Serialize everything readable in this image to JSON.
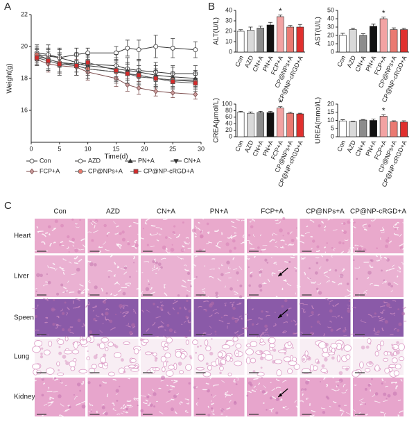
{
  "panel_labels": [
    "A",
    "B",
    "C"
  ],
  "chart_data": [
    {
      "type": "line",
      "xlabel": "Time(d)",
      "ylabel": "Weight(g)",
      "x": [
        1,
        3,
        5,
        8,
        10,
        15,
        17,
        19,
        22,
        25,
        29
      ],
      "xlim": [
        0,
        30
      ],
      "xticks": [
        0,
        5,
        10,
        15,
        20,
        25,
        30
      ],
      "ylim": [
        14,
        22
      ],
      "yticks": [
        16,
        18,
        20,
        22
      ],
      "series": [
        {
          "name": "Con",
          "color": "#333333",
          "marker": "circle",
          "marker_fill": "#ffffff",
          "values": [
            19.5,
            19.4,
            19.3,
            19.5,
            19.6,
            19.6,
            19.9,
            19.8,
            20.0,
            19.9,
            19.8
          ],
          "errors": [
            0.4,
            0.5,
            0.5,
            0.4,
            0.3,
            0.4,
            0.5,
            0.6,
            0.7,
            0.6,
            0.5
          ]
        },
        {
          "name": "AZD",
          "color": "#333333",
          "marker": "circle",
          "marker_fill": "#ffffff",
          "values": [
            19.6,
            19.5,
            19.3,
            19.0,
            18.9,
            18.8,
            18.6,
            18.5,
            18.4,
            18.3,
            18.3
          ],
          "errors": [
            0.5,
            0.6,
            0.6,
            0.6,
            0.6,
            0.7,
            0.7,
            0.7,
            0.6,
            0.5,
            0.5
          ]
        },
        {
          "name": "PN+A",
          "color": "#333333",
          "marker": "triangle",
          "marker_fill": "#333333",
          "values": [
            19.4,
            19.2,
            19.0,
            18.9,
            18.8,
            18.6,
            18.5,
            18.4,
            18.2,
            18.1,
            18.0
          ],
          "errors": [
            0.5,
            0.6,
            0.6,
            0.7,
            0.6,
            0.7,
            0.8,
            0.7,
            0.6,
            0.6,
            0.5
          ]
        },
        {
          "name": "CN+A",
          "color": "#333333",
          "marker": "triangle-down",
          "marker_fill": "#333333",
          "values": [
            19.3,
            19.1,
            18.9,
            18.8,
            18.6,
            18.4,
            18.3,
            18.2,
            18.0,
            17.9,
            17.9
          ],
          "errors": [
            0.5,
            0.6,
            0.7,
            0.6,
            0.6,
            0.7,
            0.7,
            0.6,
            0.6,
            0.5,
            0.5
          ]
        },
        {
          "name": "FCP+A",
          "color": "#7a4a4a",
          "marker": "diamond",
          "marker_fill": "#c99a9a",
          "values": [
            19.2,
            18.9,
            18.8,
            18.7,
            18.4,
            18.0,
            17.6,
            17.4,
            17.2,
            17.1,
            17.0
          ],
          "errors": [
            0.4,
            0.5,
            0.5,
            0.5,
            0.5,
            0.5,
            0.4,
            0.4,
            0.3,
            0.3,
            0.3
          ]
        },
        {
          "name": "CP@NPs+A",
          "color": "#555555",
          "marker": "circle",
          "marker_fill": "#e8796b",
          "values": [
            19.5,
            19.2,
            19.0,
            18.8,
            18.6,
            18.4,
            18.3,
            18.1,
            18.0,
            17.9,
            17.8
          ],
          "errors": [
            0.5,
            0.6,
            0.6,
            0.6,
            0.6,
            0.6,
            0.6,
            0.5,
            0.5,
            0.5,
            0.5
          ]
        },
        {
          "name": "CP@NP-cRGD+A",
          "color": "#555555",
          "marker": "square",
          "marker_fill": "#d42a2a",
          "values": [
            19.3,
            19.1,
            18.9,
            18.8,
            19.0,
            18.5,
            18.3,
            18.2,
            18.0,
            17.8,
            17.7
          ],
          "errors": [
            0.5,
            0.6,
            0.6,
            0.6,
            0.5,
            0.6,
            0.6,
            0.6,
            0.5,
            0.5,
            0.5
          ]
        }
      ]
    },
    {
      "type": "bar",
      "ylabel": "ALT(U/L)",
      "categories": [
        "Con",
        "AZD",
        "CN+A",
        "PN+A",
        "FCP+A",
        "CP@NPs+A",
        "CP@NP-cRGD+A"
      ],
      "colors": [
        "#ffffff",
        "#d9d9d9",
        "#8c8c8c",
        "#111111",
        "#f2a3a3",
        "#ea7a72",
        "#e0302e"
      ],
      "values": [
        20,
        21,
        23,
        26,
        34,
        24,
        24
      ],
      "errors": [
        1.5,
        3,
        2,
        2.5,
        1.5,
        1.5,
        2.5
      ],
      "ylim": [
        0,
        40
      ],
      "yticks": [
        0,
        10,
        20,
        30,
        40
      ],
      "annotations": [
        {
          "category": "FCP+A",
          "text": "*"
        }
      ]
    },
    {
      "type": "bar",
      "ylabel": "AST(U/L)",
      "categories": [
        "Con",
        "AZD",
        "CN+A",
        "PN+A",
        "FCP+A",
        "CP@NPs+A",
        "CP@NP-cRGD+A"
      ],
      "colors": [
        "#ffffff",
        "#d9d9d9",
        "#8c8c8c",
        "#111111",
        "#f2a3a3",
        "#ea7a72",
        "#e0302e"
      ],
      "values": [
        20,
        27,
        20,
        31,
        40,
        27,
        27
      ],
      "errors": [
        2.5,
        1.5,
        2,
        2.5,
        2,
        2,
        1.5
      ],
      "ylim": [
        0,
        50
      ],
      "yticks": [
        0,
        10,
        20,
        30,
        40,
        50
      ],
      "annotations": [
        {
          "category": "FCP+A",
          "text": "*"
        }
      ]
    },
    {
      "type": "bar",
      "ylabel": "CREA(μmol/L)",
      "categories": [
        "Con",
        "AZD",
        "CN+A",
        "PN+A",
        "FCP+A",
        "CP@NPs+A",
        "CP@NP-cRGD+A"
      ],
      "colors": [
        "#ffffff",
        "#d9d9d9",
        "#8c8c8c",
        "#111111",
        "#f2a3a3",
        "#ea7a72",
        "#e0302e"
      ],
      "values": [
        75,
        72,
        74,
        74,
        88,
        72,
        70
      ],
      "errors": [
        3,
        4,
        4,
        4,
        4,
        3,
        2
      ],
      "ylim": [
        0,
        100
      ],
      "yticks": [
        0,
        20,
        40,
        60,
        80,
        100
      ],
      "annotations": [
        {
          "category": "FCP+A",
          "text": "*"
        }
      ]
    },
    {
      "type": "bar",
      "ylabel": "UREA(mmol/L)",
      "categories": [
        "Con",
        "AZD",
        "CN+A",
        "PN+A",
        "FCP+A",
        "CP@NPs+A",
        "CP@NP-cRGD+A"
      ],
      "colors": [
        "#ffffff",
        "#d9d9d9",
        "#8c8c8c",
        "#111111",
        "#f2a3a3",
        "#ea7a72",
        "#e0302e"
      ],
      "values": [
        9.7,
        9.3,
        10.2,
        10,
        12.6,
        9.2,
        9
      ],
      "errors": [
        0.7,
        0.3,
        0.4,
        0.8,
        0.9,
        0.6,
        0.8
      ],
      "ylim": [
        0,
        20
      ],
      "yticks": [
        0,
        5,
        10,
        15,
        20
      ],
      "annotations": [
        {
          "category": "FCP+A",
          "text": "*"
        }
      ]
    }
  ],
  "histology": {
    "columns": [
      "Con",
      "AZD",
      "CN+A",
      "PN+A",
      "FCP+A",
      "CP@NPs+A",
      "CP@NP-cRGD+A"
    ],
    "rows": [
      "Heart",
      "Liver",
      "Speen",
      "Lung",
      "Kidney"
    ]
  }
}
